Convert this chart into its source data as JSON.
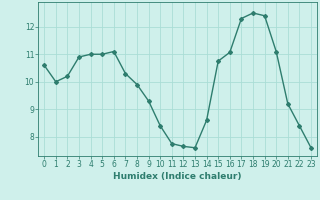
{
  "x": [
    0,
    1,
    2,
    3,
    4,
    5,
    6,
    7,
    8,
    9,
    10,
    11,
    12,
    13,
    14,
    15,
    16,
    17,
    18,
    19,
    20,
    21,
    22,
    23
  ],
  "y": [
    10.6,
    10.0,
    10.2,
    10.9,
    11.0,
    11.0,
    11.1,
    10.3,
    9.9,
    9.3,
    8.4,
    7.75,
    7.65,
    7.6,
    8.6,
    10.75,
    11.07,
    12.3,
    12.5,
    12.4,
    11.1,
    9.2,
    8.4,
    7.6
  ],
  "line_color": "#2e7d6e",
  "marker": "D",
  "marker_size": 2,
  "bg_color": "#cff0eb",
  "grid_color": "#aaddd6",
  "axis_color": "#2e7d6e",
  "xlabel": "Humidex (Indice chaleur)",
  "xlabel_fontsize": 6.5,
  "tick_fontsize": 5.5,
  "ylim": [
    7.3,
    12.9
  ],
  "xlim": [
    -0.5,
    23.5
  ],
  "yticks": [
    8,
    9,
    10,
    11,
    12
  ],
  "xticks": [
    0,
    1,
    2,
    3,
    4,
    5,
    6,
    7,
    8,
    9,
    10,
    11,
    12,
    13,
    14,
    15,
    16,
    17,
    18,
    19,
    20,
    21,
    22,
    23
  ],
  "line_width": 1.0
}
